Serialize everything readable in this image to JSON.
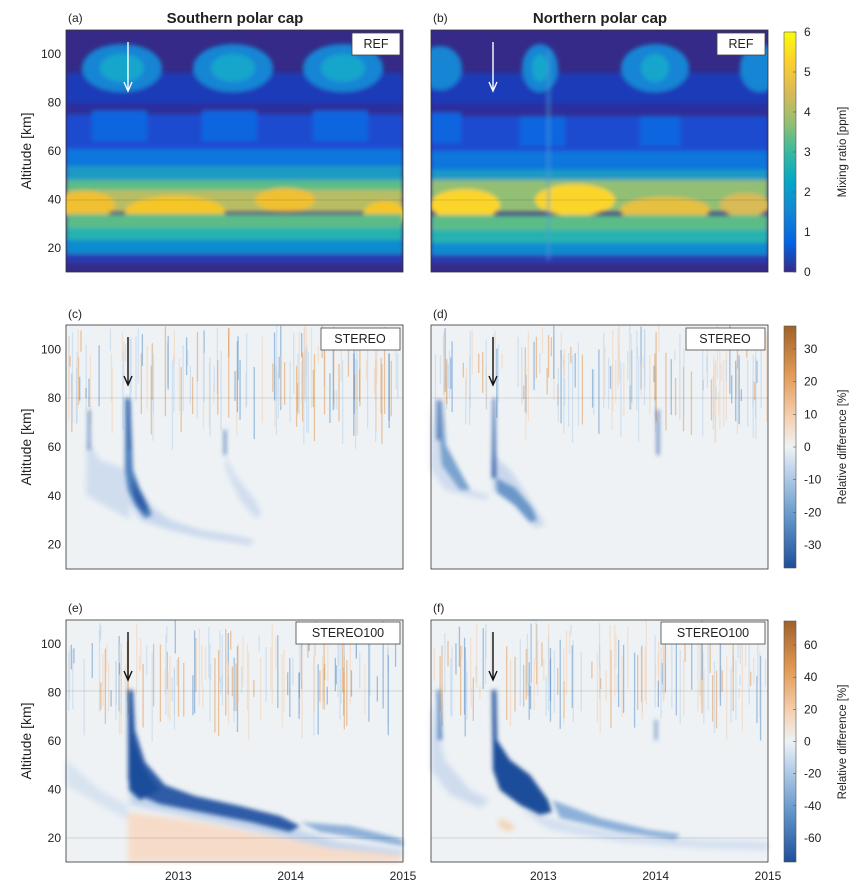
{
  "column_titles": [
    "Southern polar cap",
    "Northern polar cap"
  ],
  "panel_letters": [
    "(a)",
    "(b)",
    "(c)",
    "(d)",
    "(e)",
    "(f)"
  ],
  "colors": {
    "parula": [
      "#352a87",
      "#0363e1",
      "#1485d4",
      "#06a7c6",
      "#38b99e",
      "#92bf73",
      "#d9ba56",
      "#fcce2e",
      "#f9fb0e"
    ],
    "diverging": [
      "#1f4e9a",
      "#5f93c9",
      "#bcd3ea",
      "#eef2f5",
      "#f4d2b3",
      "#e29a55",
      "#a0622a"
    ],
    "arrow_ref": "#ffffff",
    "arrow_diff": "#111111"
  },
  "chart_data": [
    {
      "id": "a",
      "type": "heatmap",
      "label": "REF",
      "ylabel": "Altitude [km]",
      "ylim": [
        10,
        110
      ],
      "yticks": [
        20,
        40,
        60,
        80,
        100
      ],
      "x_range": [
        "2012-01",
        "2015-01"
      ],
      "xticks": [],
      "event_arrow_date": "2012-07",
      "colorbar": "mixing"
    },
    {
      "id": "b",
      "type": "heatmap",
      "label": "REF",
      "ylim": [
        10,
        110
      ],
      "x_range": [
        "2012-01",
        "2015-01"
      ],
      "xticks": [],
      "event_arrow_date": "2012-07",
      "colorbar": "mixing"
    },
    {
      "id": "c",
      "type": "heatmap",
      "label": "STEREO",
      "ylabel": "Altitude [km]",
      "ylim": [
        10,
        110
      ],
      "yticks": [
        20,
        40,
        60,
        80,
        100
      ],
      "x_range": [
        "2012-01",
        "2015-01"
      ],
      "xticks": [],
      "event_arrow_date": "2012-07",
      "colorbar": "reldiff1"
    },
    {
      "id": "d",
      "type": "heatmap",
      "label": "STEREO",
      "ylim": [
        10,
        110
      ],
      "x_range": [
        "2012-01",
        "2015-01"
      ],
      "xticks": [],
      "event_arrow_date": "2012-07",
      "colorbar": "reldiff1"
    },
    {
      "id": "e",
      "type": "heatmap",
      "label": "STEREO100",
      "ylabel": "Altitude [km]",
      "ylim": [
        10,
        110
      ],
      "yticks": [
        20,
        40,
        60,
        80,
        100
      ],
      "x_range": [
        "2012-01",
        "2015-01"
      ],
      "xticks": [
        "2013",
        "2014",
        "2015"
      ],
      "event_arrow_date": "2012-07",
      "colorbar": "reldiff2"
    },
    {
      "id": "f",
      "type": "heatmap",
      "label": "STEREO100",
      "ylim": [
        10,
        110
      ],
      "x_range": [
        "2012-01",
        "2015-01"
      ],
      "xticks": [
        "2013",
        "2014",
        "2015"
      ],
      "event_arrow_date": "2012-07",
      "colorbar": "reldiff2"
    }
  ],
  "colorbars": {
    "mixing": {
      "label": "Mixing ratio [ppm]",
      "range": [
        0,
        6
      ],
      "ticks": [
        "0",
        "1",
        "2",
        "3",
        "4",
        "5",
        "6"
      ],
      "palette": "parula"
    },
    "reldiff1": {
      "label": "Relative difference [%]",
      "range": [
        -37,
        37
      ],
      "ticks": [
        "30",
        "20",
        "10",
        "0",
        "-10",
        "-20",
        "-30"
      ],
      "tick_values": [
        30,
        20,
        10,
        0,
        -10,
        -20,
        -30
      ],
      "palette": "diverging"
    },
    "reldiff2": {
      "label": "Relative difference [%]",
      "range": [
        -75,
        75
      ],
      "ticks": [
        "60",
        "40",
        "20",
        "0",
        "-20",
        "-40",
        "-60"
      ],
      "tick_values": [
        60,
        40,
        20,
        0,
        -20,
        -40,
        -60
      ],
      "palette": "diverging"
    }
  }
}
